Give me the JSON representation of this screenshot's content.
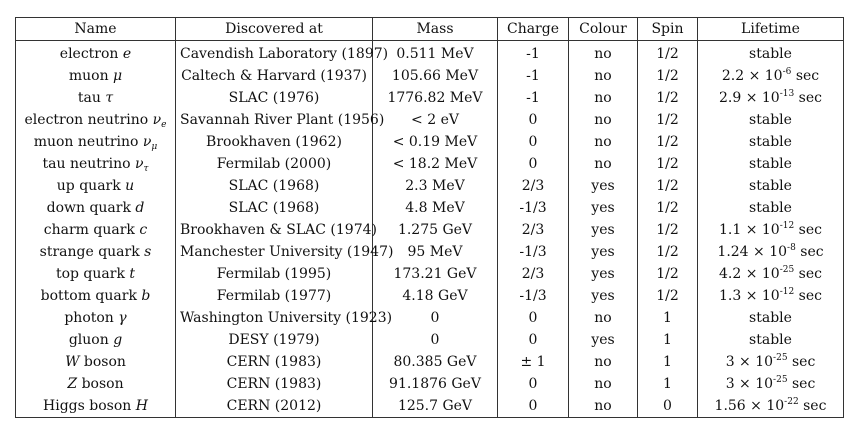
{
  "table": {
    "columns": [
      "Name",
      "Discovered at",
      "Mass",
      "Charge",
      "Colour",
      "Spin",
      "Lifetime"
    ],
    "rows": [
      {
        "name": "electron",
        "sym": "e",
        "sub": "",
        "discovered": "Cavendish Laboratory (1897)",
        "mass": "0.511 MeV",
        "charge": "-1",
        "colour": "no",
        "spin": "1/2",
        "life": {
          "text": "stable",
          "base": "",
          "exp": "",
          "unit": ""
        }
      },
      {
        "name": "muon",
        "sym": "μ",
        "sub": "",
        "discovered": "Caltech & Harvard (1937)",
        "mass": "105.66 MeV",
        "charge": "-1",
        "colour": "no",
        "spin": "1/2",
        "life": {
          "text": "",
          "base": "2.2 × 10",
          "exp": "-6",
          "unit": "sec"
        }
      },
      {
        "name": "tau",
        "sym": "τ",
        "sub": "",
        "discovered": "SLAC (1976)",
        "mass": "1776.82 MeV",
        "charge": "-1",
        "colour": "no",
        "spin": "1/2",
        "life": {
          "text": "",
          "base": "2.9 × 10",
          "exp": "-13",
          "unit": "sec"
        }
      },
      {
        "name": "electron neutrino",
        "sym": "ν",
        "sub": "e",
        "discovered": "Savannah River Plant (1956)",
        "mass": "< 2 eV",
        "charge": "0",
        "colour": "no",
        "spin": "1/2",
        "life": {
          "text": "stable",
          "base": "",
          "exp": "",
          "unit": ""
        }
      },
      {
        "name": "muon neutrino",
        "sym": "ν",
        "sub": "μ",
        "discovered": "Brookhaven (1962)",
        "mass": "< 0.19 MeV",
        "charge": "0",
        "colour": "no",
        "spin": "1/2",
        "life": {
          "text": "stable",
          "base": "",
          "exp": "",
          "unit": ""
        }
      },
      {
        "name": "tau neutrino",
        "sym": "ν",
        "sub": "τ",
        "discovered": "Fermilab (2000)",
        "mass": "< 18.2 MeV",
        "charge": "0",
        "colour": "no",
        "spin": "1/2",
        "life": {
          "text": "stable",
          "base": "",
          "exp": "",
          "unit": ""
        }
      },
      {
        "name": "up quark",
        "sym": "u",
        "sub": "",
        "discovered": "SLAC (1968)",
        "mass": "2.3 MeV",
        "charge": "2/3",
        "colour": "yes",
        "spin": "1/2",
        "life": {
          "text": "stable",
          "base": "",
          "exp": "",
          "unit": ""
        }
      },
      {
        "name": "down quark",
        "sym": "d",
        "sub": "",
        "discovered": "SLAC (1968)",
        "mass": "4.8 MeV",
        "charge": "-1/3",
        "colour": "yes",
        "spin": "1/2",
        "life": {
          "text": "stable",
          "base": "",
          "exp": "",
          "unit": ""
        }
      },
      {
        "name": "charm quark",
        "sym": "c",
        "sub": "",
        "discovered": "Brookhaven & SLAC (1974)",
        "mass": "1.275 GeV",
        "charge": "2/3",
        "colour": "yes",
        "spin": "1/2",
        "life": {
          "text": "",
          "base": "1.1 × 10",
          "exp": "-12",
          "unit": "sec"
        }
      },
      {
        "name": "strange quark",
        "sym": "s",
        "sub": "",
        "discovered": "Manchester University (1947)",
        "mass": "95 MeV",
        "charge": "-1/3",
        "colour": "yes",
        "spin": "1/2",
        "life": {
          "text": "",
          "base": "1.24 × 10",
          "exp": "-8",
          "unit": "sec"
        }
      },
      {
        "name": "top quark",
        "sym": "t",
        "sub": "",
        "discovered": "Fermilab (1995)",
        "mass": "173.21 GeV",
        "charge": "2/3",
        "colour": "yes",
        "spin": "1/2",
        "life": {
          "text": "",
          "base": "4.2 × 10",
          "exp": "-25",
          "unit": "sec"
        }
      },
      {
        "name": "bottom quark",
        "sym": "b",
        "sub": "",
        "discovered": "Fermilab (1977)",
        "mass": "4.18 GeV",
        "charge": "-1/3",
        "colour": "yes",
        "spin": "1/2",
        "life": {
          "text": "",
          "base": "1.3 × 10",
          "exp": "-12",
          "unit": "sec"
        }
      },
      {
        "name": "photon",
        "sym": "γ",
        "sub": "",
        "discovered": "Washington University (1923)",
        "mass": "0",
        "charge": "0",
        "colour": "no",
        "spin": "1",
        "life": {
          "text": "stable",
          "base": "",
          "exp": "",
          "unit": ""
        }
      },
      {
        "name": "gluon",
        "sym": "g",
        "sub": "",
        "discovered": "DESY (1979)",
        "mass": "0",
        "charge": "0",
        "colour": "yes",
        "spin": "1",
        "life": {
          "text": "stable",
          "base": "",
          "exp": "",
          "unit": ""
        }
      },
      {
        "name": "boson",
        "sym": "W",
        "sub": "",
        "symFirst": true,
        "discovered": "CERN (1983)",
        "mass": "80.385 GeV",
        "charge": "± 1",
        "colour": "no",
        "spin": "1",
        "life": {
          "text": "",
          "base": "3 × 10",
          "exp": "-25",
          "unit": "sec"
        }
      },
      {
        "name": "boson",
        "sym": "Z",
        "sub": "",
        "symFirst": true,
        "discovered": "CERN (1983)",
        "mass": "91.1876 GeV",
        "charge": "0",
        "colour": "no",
        "spin": "1",
        "life": {
          "text": "",
          "base": "3 × 10",
          "exp": "-25",
          "unit": "sec"
        }
      },
      {
        "name": "Higgs boson",
        "sym": "H",
        "sub": "",
        "discovered": "CERN (2012)",
        "mass": "125.7 GeV",
        "charge": "0",
        "colour": "no",
        "spin": "0",
        "life": {
          "text": "",
          "base": "1.56 × 10",
          "exp": "-22",
          "unit": "sec"
        }
      }
    ]
  }
}
